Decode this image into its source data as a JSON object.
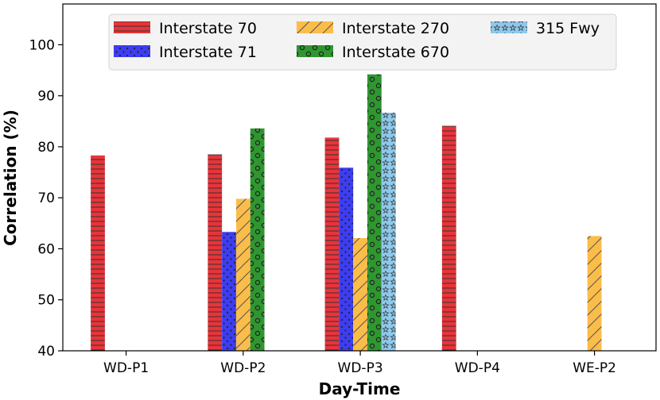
{
  "chart_data": {
    "type": "bar",
    "title": "",
    "xlabel": "Day-Time",
    "ylabel": "Correlation (%)",
    "ylim": [
      40,
      108
    ],
    "yticks": [
      40,
      50,
      60,
      70,
      80,
      90,
      100
    ],
    "categories": [
      "WD-P1",
      "WD-P2",
      "WD-P3",
      "WD-P4",
      "WE-P2"
    ],
    "series": [
      {
        "name": "Interstate 70",
        "color": "#e8343a",
        "pattern": "horizontal-lines",
        "values": [
          78.3,
          78.5,
          81.8,
          84.1,
          null
        ]
      },
      {
        "name": "Interstate 71",
        "color": "#3d3df2",
        "pattern": "dots",
        "values": [
          null,
          63.3,
          75.9,
          null,
          null
        ]
      },
      {
        "name": "Interstate 270",
        "color": "#fbbd4a",
        "pattern": "diagonal-lines",
        "values": [
          null,
          69.8,
          62.1,
          null,
          62.5
        ]
      },
      {
        "name": "Interstate 670",
        "color": "#2f9630",
        "pattern": "circles",
        "values": [
          null,
          83.6,
          94.2,
          null,
          null
        ]
      },
      {
        "name": "315 Fwy",
        "color": "#8ec9ec",
        "pattern": "stars",
        "values": [
          null,
          null,
          86.7,
          null,
          null
        ]
      }
    ],
    "legend": {
      "position": "top-center",
      "columns": 3
    },
    "grid": false
  }
}
